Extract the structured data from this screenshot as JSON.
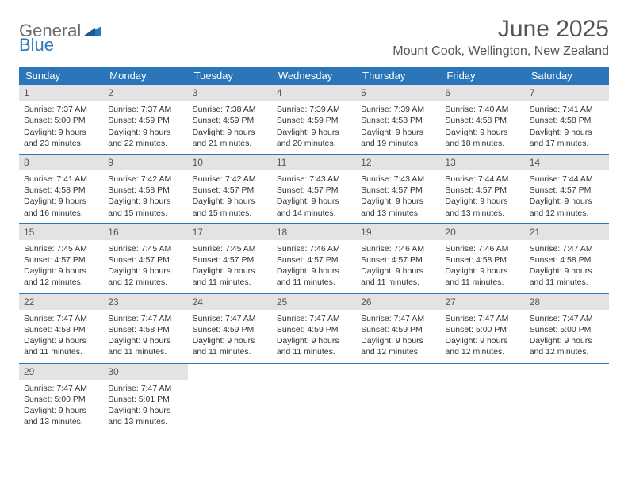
{
  "logo": {
    "part1": "General",
    "part2": "Blue"
  },
  "title": "June 2025",
  "location": "Mount Cook, Wellington, New Zealand",
  "colors": {
    "accent": "#2a76b8",
    "daynum_bg": "#e3e3e3",
    "text": "#333333",
    "title_text": "#555555",
    "background": "#ffffff"
  },
  "days_of_week": [
    "Sunday",
    "Monday",
    "Tuesday",
    "Wednesday",
    "Thursday",
    "Friday",
    "Saturday"
  ],
  "weeks": [
    [
      {
        "n": "1",
        "sunrise": "Sunrise: 7:37 AM",
        "sunset": "Sunset: 5:00 PM",
        "daylight": "Daylight: 9 hours and 23 minutes."
      },
      {
        "n": "2",
        "sunrise": "Sunrise: 7:37 AM",
        "sunset": "Sunset: 4:59 PM",
        "daylight": "Daylight: 9 hours and 22 minutes."
      },
      {
        "n": "3",
        "sunrise": "Sunrise: 7:38 AM",
        "sunset": "Sunset: 4:59 PM",
        "daylight": "Daylight: 9 hours and 21 minutes."
      },
      {
        "n": "4",
        "sunrise": "Sunrise: 7:39 AM",
        "sunset": "Sunset: 4:59 PM",
        "daylight": "Daylight: 9 hours and 20 minutes."
      },
      {
        "n": "5",
        "sunrise": "Sunrise: 7:39 AM",
        "sunset": "Sunset: 4:58 PM",
        "daylight": "Daylight: 9 hours and 19 minutes."
      },
      {
        "n": "6",
        "sunrise": "Sunrise: 7:40 AM",
        "sunset": "Sunset: 4:58 PM",
        "daylight": "Daylight: 9 hours and 18 minutes."
      },
      {
        "n": "7",
        "sunrise": "Sunrise: 7:41 AM",
        "sunset": "Sunset: 4:58 PM",
        "daylight": "Daylight: 9 hours and 17 minutes."
      }
    ],
    [
      {
        "n": "8",
        "sunrise": "Sunrise: 7:41 AM",
        "sunset": "Sunset: 4:58 PM",
        "daylight": "Daylight: 9 hours and 16 minutes."
      },
      {
        "n": "9",
        "sunrise": "Sunrise: 7:42 AM",
        "sunset": "Sunset: 4:58 PM",
        "daylight": "Daylight: 9 hours and 15 minutes."
      },
      {
        "n": "10",
        "sunrise": "Sunrise: 7:42 AM",
        "sunset": "Sunset: 4:57 PM",
        "daylight": "Daylight: 9 hours and 15 minutes."
      },
      {
        "n": "11",
        "sunrise": "Sunrise: 7:43 AM",
        "sunset": "Sunset: 4:57 PM",
        "daylight": "Daylight: 9 hours and 14 minutes."
      },
      {
        "n": "12",
        "sunrise": "Sunrise: 7:43 AM",
        "sunset": "Sunset: 4:57 PM",
        "daylight": "Daylight: 9 hours and 13 minutes."
      },
      {
        "n": "13",
        "sunrise": "Sunrise: 7:44 AM",
        "sunset": "Sunset: 4:57 PM",
        "daylight": "Daylight: 9 hours and 13 minutes."
      },
      {
        "n": "14",
        "sunrise": "Sunrise: 7:44 AM",
        "sunset": "Sunset: 4:57 PM",
        "daylight": "Daylight: 9 hours and 12 minutes."
      }
    ],
    [
      {
        "n": "15",
        "sunrise": "Sunrise: 7:45 AM",
        "sunset": "Sunset: 4:57 PM",
        "daylight": "Daylight: 9 hours and 12 minutes."
      },
      {
        "n": "16",
        "sunrise": "Sunrise: 7:45 AM",
        "sunset": "Sunset: 4:57 PM",
        "daylight": "Daylight: 9 hours and 12 minutes."
      },
      {
        "n": "17",
        "sunrise": "Sunrise: 7:45 AM",
        "sunset": "Sunset: 4:57 PM",
        "daylight": "Daylight: 9 hours and 11 minutes."
      },
      {
        "n": "18",
        "sunrise": "Sunrise: 7:46 AM",
        "sunset": "Sunset: 4:57 PM",
        "daylight": "Daylight: 9 hours and 11 minutes."
      },
      {
        "n": "19",
        "sunrise": "Sunrise: 7:46 AM",
        "sunset": "Sunset: 4:57 PM",
        "daylight": "Daylight: 9 hours and 11 minutes."
      },
      {
        "n": "20",
        "sunrise": "Sunrise: 7:46 AM",
        "sunset": "Sunset: 4:58 PM",
        "daylight": "Daylight: 9 hours and 11 minutes."
      },
      {
        "n": "21",
        "sunrise": "Sunrise: 7:47 AM",
        "sunset": "Sunset: 4:58 PM",
        "daylight": "Daylight: 9 hours and 11 minutes."
      }
    ],
    [
      {
        "n": "22",
        "sunrise": "Sunrise: 7:47 AM",
        "sunset": "Sunset: 4:58 PM",
        "daylight": "Daylight: 9 hours and 11 minutes."
      },
      {
        "n": "23",
        "sunrise": "Sunrise: 7:47 AM",
        "sunset": "Sunset: 4:58 PM",
        "daylight": "Daylight: 9 hours and 11 minutes."
      },
      {
        "n": "24",
        "sunrise": "Sunrise: 7:47 AM",
        "sunset": "Sunset: 4:59 PM",
        "daylight": "Daylight: 9 hours and 11 minutes."
      },
      {
        "n": "25",
        "sunrise": "Sunrise: 7:47 AM",
        "sunset": "Sunset: 4:59 PM",
        "daylight": "Daylight: 9 hours and 11 minutes."
      },
      {
        "n": "26",
        "sunrise": "Sunrise: 7:47 AM",
        "sunset": "Sunset: 4:59 PM",
        "daylight": "Daylight: 9 hours and 12 minutes."
      },
      {
        "n": "27",
        "sunrise": "Sunrise: 7:47 AM",
        "sunset": "Sunset: 5:00 PM",
        "daylight": "Daylight: 9 hours and 12 minutes."
      },
      {
        "n": "28",
        "sunrise": "Sunrise: 7:47 AM",
        "sunset": "Sunset: 5:00 PM",
        "daylight": "Daylight: 9 hours and 12 minutes."
      }
    ],
    [
      {
        "n": "29",
        "sunrise": "Sunrise: 7:47 AM",
        "sunset": "Sunset: 5:00 PM",
        "daylight": "Daylight: 9 hours and 13 minutes."
      },
      {
        "n": "30",
        "sunrise": "Sunrise: 7:47 AM",
        "sunset": "Sunset: 5:01 PM",
        "daylight": "Daylight: 9 hours and 13 minutes."
      },
      null,
      null,
      null,
      null,
      null
    ]
  ]
}
